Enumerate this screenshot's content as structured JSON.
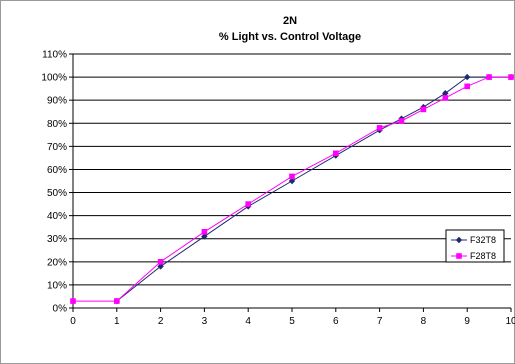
{
  "chart_data": {
    "type": "line",
    "title": "2N",
    "subtitle": "% Light vs. Control Voltage",
    "xlabel": "",
    "ylabel": "",
    "xlim": [
      0,
      10
    ],
    "ylim": [
      0,
      110
    ],
    "x_ticks": [
      "0",
      "1",
      "2",
      "3",
      "4",
      "5",
      "6",
      "7",
      "8",
      "9",
      "10"
    ],
    "y_ticks": [
      "0%",
      "10%",
      "20%",
      "30%",
      "40%",
      "50%",
      "60%",
      "70%",
      "80%",
      "90%",
      "100%",
      "110%"
    ],
    "grid": "horizontal",
    "legend_position": "right",
    "series": [
      {
        "name": "F32T8",
        "color": "#1f2a6e",
        "marker": "diamond",
        "x": [
          1,
          2,
          3,
          4,
          5,
          6,
          7,
          7.5,
          8,
          8.5,
          9,
          9.5,
          10
        ],
        "y": [
          3,
          18,
          31,
          44,
          55,
          66,
          77,
          82,
          87,
          93,
          100,
          100,
          100
        ]
      },
      {
        "name": "F28T8",
        "color": "#ff00ff",
        "marker": "square",
        "x": [
          0,
          1,
          2,
          3,
          4,
          5,
          6,
          7,
          7.5,
          8,
          8.5,
          9,
          9.5,
          10
        ],
        "y": [
          3,
          3,
          20,
          33,
          45,
          57,
          67,
          78,
          81,
          86,
          91,
          96,
          100,
          100
        ]
      }
    ]
  }
}
